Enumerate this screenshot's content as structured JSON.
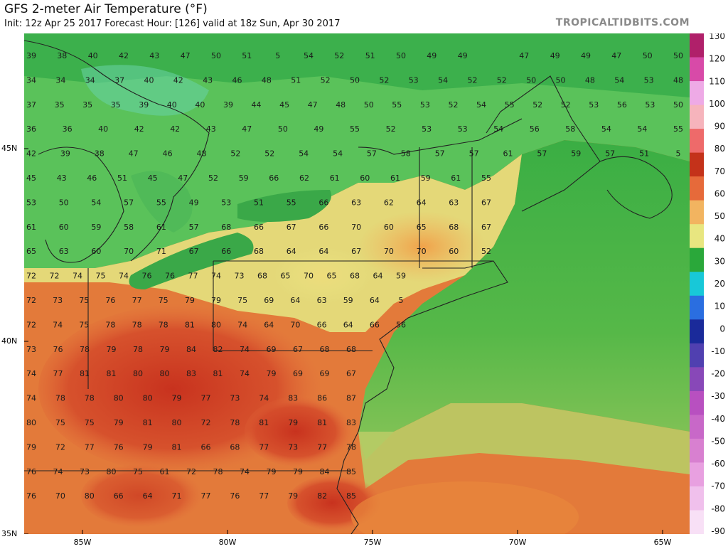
{
  "header": {
    "title": "GFS 2-meter Air Temperature (°F)",
    "subtitle": "Init: 12z Apr 25 2017   Forecast Hour: [126]   valid at 18z Sun, Apr 30 2017",
    "source": "TROPICALTIDBITS.COM"
  },
  "axes": {
    "lon_ticks": [
      {
        "label": "85W",
        "lon": -85
      },
      {
        "label": "80W",
        "lon": -80
      },
      {
        "label": "75W",
        "lon": -75
      },
      {
        "label": "70W",
        "lon": -70
      },
      {
        "label": "65W",
        "lon": -65
      }
    ],
    "lat_ticks": [
      {
        "label": "45N",
        "lat": 45
      },
      {
        "label": "40N",
        "lat": 40
      },
      {
        "label": "35N",
        "lat": 35
      }
    ]
  },
  "legend": {
    "ticks": [
      "130",
      "120",
      "110",
      "100",
      "90",
      "80",
      "70",
      "60",
      "50",
      "40",
      "30",
      "20",
      "10",
      "0",
      "-10",
      "-20",
      "-30",
      "-40",
      "-50",
      "-60",
      "-70",
      "-80",
      "-90"
    ],
    "colors": [
      "#b0206a",
      "#d84aa8",
      "#eeaae6",
      "#f6b4bc",
      "#ee6a6a",
      "#c4321a",
      "#e66a3a",
      "#f2b460",
      "#e8e680",
      "#2aa83a",
      "#18c8d8",
      "#2a6ee0",
      "#1a2a9a",
      "#5040b0",
      "#8848b8",
      "#b850c0",
      "#c868c8",
      "#d880d0",
      "#e8a0e0",
      "#f0c0ec",
      "#f8e0f6"
    ]
  },
  "temperatures": [
    [
      39,
      38,
      40,
      42,
      43,
      47,
      50,
      51,
      5,
      54,
      52,
      51,
      50,
      49,
      49,
      "",
      47,
      49,
      49,
      47,
      50,
      50
    ],
    [
      34,
      34,
      34,
      37,
      40,
      42,
      43,
      46,
      48,
      51,
      52,
      50,
      52,
      53,
      54,
      52,
      52,
      50,
      50,
      48,
      54,
      53,
      48
    ],
    [
      37,
      35,
      35,
      35,
      39,
      40,
      40,
      39,
      44,
      45,
      47,
      48,
      50,
      55,
      53,
      52,
      54,
      55,
      52,
      52,
      53,
      56,
      53,
      50
    ],
    [
      36,
      36,
      40,
      42,
      42,
      43,
      47,
      50,
      49,
      55,
      52,
      53,
      53,
      54,
      56,
      58,
      54,
      54,
      55
    ],
    [
      42,
      39,
      38,
      47,
      46,
      48,
      52,
      52,
      54,
      54,
      57,
      58,
      57,
      57,
      61,
      57,
      59,
      57,
      51,
      5
    ],
    [
      45,
      43,
      46,
      51,
      45,
      47,
      52,
      59,
      66,
      62,
      61,
      60,
      61,
      59,
      61,
      55
    ],
    [
      53,
      50,
      54,
      57,
      55,
      49,
      53,
      51,
      55,
      66,
      63,
      62,
      64,
      63,
      67
    ],
    [
      61,
      60,
      59,
      58,
      61,
      57,
      68,
      66,
      67,
      66,
      70,
      60,
      65,
      68,
      67
    ],
    [
      65,
      63,
      60,
      70,
      71,
      67,
      66,
      68,
      64,
      64,
      67,
      70,
      70,
      60,
      52
    ],
    [
      72,
      72,
      74,
      75,
      74,
      76,
      76,
      77,
      74,
      73,
      68,
      65,
      70,
      65,
      68,
      64,
      59
    ],
    [
      72,
      73,
      75,
      76,
      77,
      75,
      79,
      79,
      75,
      69,
      64,
      63,
      59,
      64,
      5
    ],
    [
      72,
      74,
      75,
      78,
      78,
      78,
      81,
      80,
      74,
      64,
      70,
      66,
      64,
      66,
      56
    ],
    [
      73,
      76,
      78,
      79,
      78,
      79,
      84,
      82,
      74,
      69,
      67,
      68,
      68
    ],
    [
      74,
      77,
      81,
      81,
      80,
      80,
      83,
      81,
      74,
      79,
      69,
      69,
      67
    ],
    [
      74,
      78,
      78,
      80,
      80,
      79,
      77,
      73,
      74,
      83,
      86,
      87
    ],
    [
      80,
      75,
      75,
      79,
      81,
      80,
      72,
      78,
      81,
      79,
      81,
      83
    ],
    [
      79,
      72,
      77,
      76,
      79,
      81,
      66,
      68,
      77,
      73,
      77,
      78
    ],
    [
      76,
      74,
      73,
      80,
      75,
      61,
      72,
      78,
      74,
      79,
      79,
      84,
      85
    ],
    [
      76,
      70,
      80,
      66,
      64,
      71,
      77,
      76,
      77,
      79,
      82,
      85
    ]
  ]
}
